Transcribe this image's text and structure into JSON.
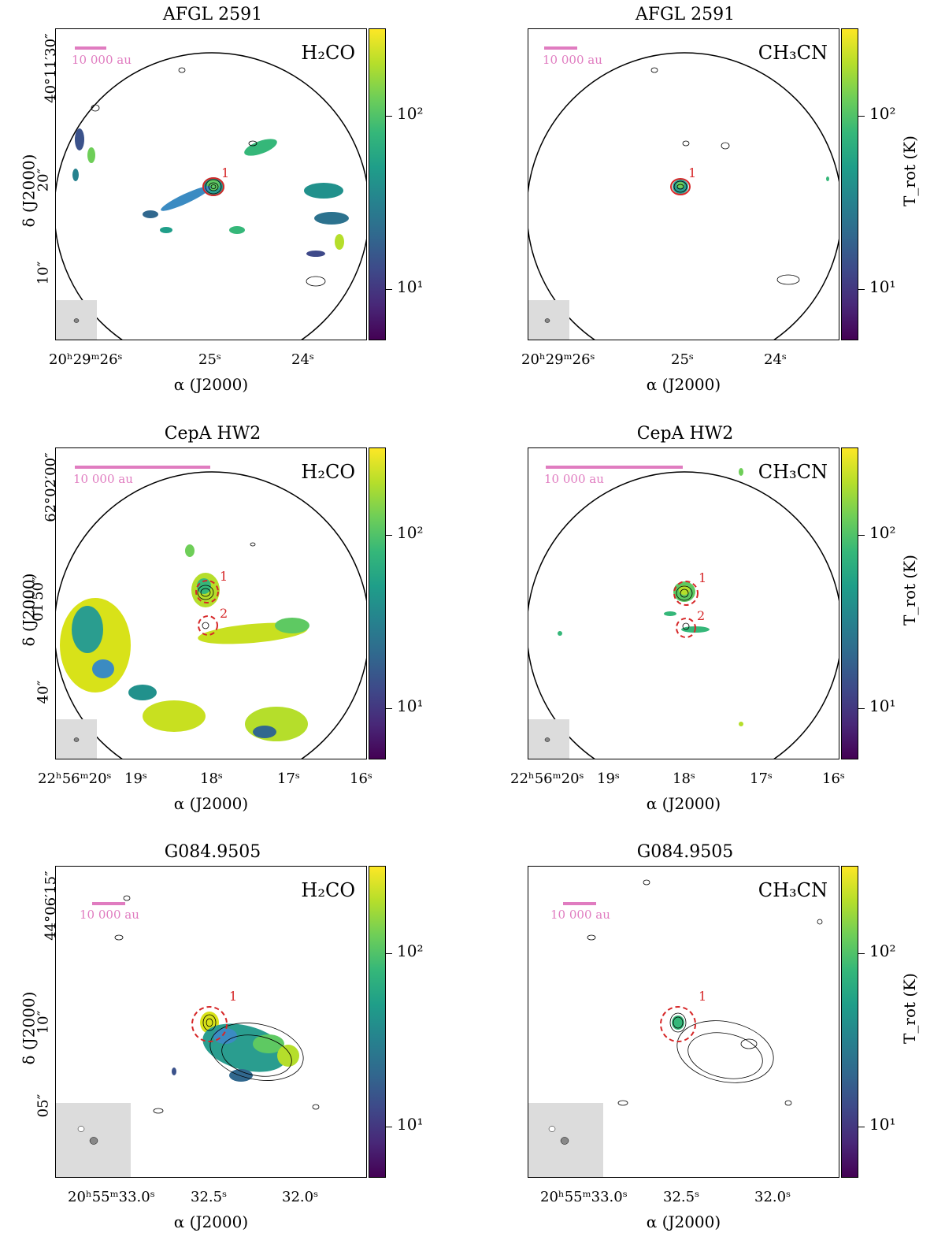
{
  "colors": {
    "scalebar": "#e07cc0",
    "marker": "#d62728",
    "contour": "#000000",
    "beambox": "#dcdcdc"
  },
  "colorbar": {
    "title": "T_rot (K)",
    "tick_labels": [
      "10¹",
      "10²"
    ]
  },
  "x_axis_label": "α (J2000)",
  "y_axis_label": "δ (J2000)",
  "scalebar_label": "10 000 au",
  "panels": [
    {
      "title": "AFGL 2591",
      "species": "H₂CO",
      "yticks": [
        "40°11′30″",
        "20″",
        "10″"
      ],
      "xticks": [
        "20ʰ29ᵐ26ˢ",
        "25ˢ",
        "24ˢ"
      ],
      "source_labels": [
        "1"
      ]
    },
    {
      "title": "AFGL 2591",
      "species": "CH₃CN",
      "yticks": [
        "",
        "",
        ""
      ],
      "xticks": [
        "20ʰ29ᵐ26ˢ",
        "25ˢ",
        "24ˢ"
      ],
      "source_labels": [
        "1"
      ]
    },
    {
      "title": "CepA HW2",
      "species": "H₂CO",
      "yticks": [
        "62°02′00″",
        "01′50″",
        "40″"
      ],
      "xticks": [
        "22ʰ56ᵐ20ˢ",
        "19ˢ",
        "18ˢ",
        "17ˢ",
        "16ˢ"
      ],
      "source_labels": [
        "1",
        "2"
      ]
    },
    {
      "title": "CepA HW2",
      "species": "CH₃CN",
      "yticks": [
        "",
        "",
        ""
      ],
      "xticks": [
        "22ʰ56ᵐ20ˢ",
        "19ˢ",
        "18ˢ",
        "17ˢ",
        "16ˢ"
      ],
      "source_labels": [
        "1",
        "2"
      ]
    },
    {
      "title": "G084.9505",
      "species": "H₂CO",
      "yticks": [
        "44°06′15″",
        "10″",
        "05″"
      ],
      "xticks": [
        "20ʰ55ᵐ33.0ˢ",
        "32.5ˢ",
        "32.0ˢ"
      ],
      "source_labels": [
        "1"
      ]
    },
    {
      "title": "G084.9505",
      "species": "CH₃CN",
      "yticks": [
        "",
        "",
        ""
      ],
      "xticks": [
        "20ʰ55ᵐ33.0ˢ",
        "32.5ˢ",
        "32.0ˢ"
      ],
      "source_labels": [
        "1"
      ]
    }
  ]
}
